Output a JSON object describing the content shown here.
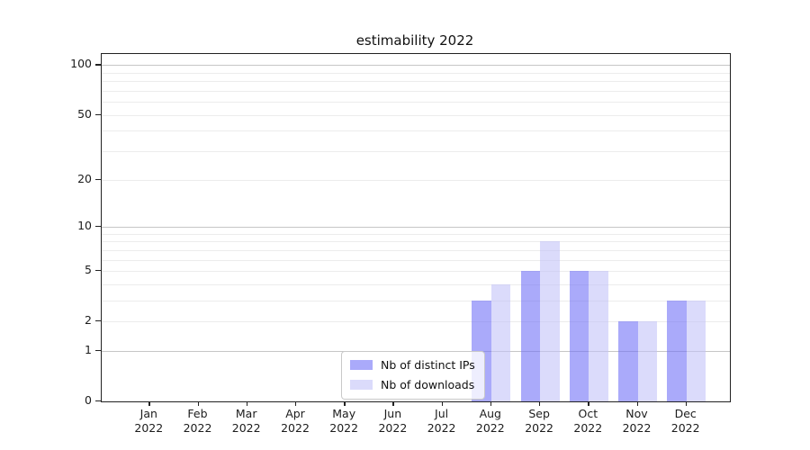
{
  "title": "estimability 2022",
  "chart_data": {
    "type": "bar",
    "title": "estimability 2022",
    "categories": [
      "Jan 2022",
      "Feb 2022",
      "Mar 2022",
      "Apr 2022",
      "May 2022",
      "Jun 2022",
      "Jul 2022",
      "Aug 2022",
      "Sep 2022",
      "Oct 2022",
      "Nov 2022",
      "Dec 2022"
    ],
    "x_tick_months": [
      "Jan",
      "Feb",
      "Mar",
      "Apr",
      "May",
      "Jun",
      "Jul",
      "Aug",
      "Sep",
      "Oct",
      "Nov",
      "Dec"
    ],
    "x_tick_year": "2022",
    "series": [
      {
        "name": "Nb of distinct IPs",
        "color": "#7171F7",
        "opacity": 0.6,
        "values": [
          0,
          0,
          0,
          0,
          0,
          0,
          0,
          3,
          5,
          5,
          2,
          3
        ]
      },
      {
        "name": "Nb of downloads",
        "color": "#C3C3F8",
        "opacity": 0.6,
        "values": [
          0,
          0,
          0,
          0,
          0,
          0,
          0,
          4,
          8,
          5,
          2,
          3
        ]
      }
    ],
    "xlabel": "",
    "ylabel": "",
    "y_axis": {
      "scale": "log1p",
      "tick_values": [
        0,
        1,
        2,
        5,
        10,
        20,
        50,
        100
      ],
      "tick_labels": [
        "0",
        "1",
        "2",
        "5",
        "10",
        "20",
        "50",
        "100"
      ],
      "major_grid_values": [
        1,
        10,
        100
      ],
      "minor_grid_values": [
        2,
        3,
        4,
        5,
        6,
        7,
        8,
        9,
        20,
        30,
        40,
        50,
        60,
        70,
        80,
        90
      ],
      "ylim": [
        0,
        116.7
      ],
      "grid": "on"
    },
    "legend_position": "lower center (inside axes)"
  },
  "legend": {
    "items": [
      {
        "label": "Nb of distinct IPs"
      },
      {
        "label": "Nb of downloads"
      }
    ]
  }
}
